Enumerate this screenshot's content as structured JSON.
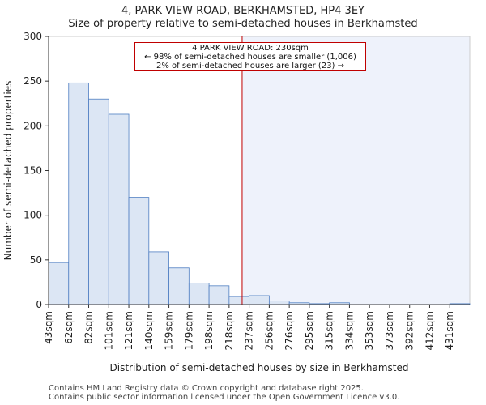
{
  "chart_data": {
    "type": "bar",
    "title": "4, PARK VIEW ROAD, BERKHAMSTED, HP4 3EY",
    "subtitle": "Size of property relative to semi-detached houses in Berkhamsted",
    "xlabel": "Distribution of semi-detached houses by size in Berkhamsted",
    "ylabel": "Number of semi-detached properties",
    "ylim": [
      0,
      300
    ],
    "yticks": [
      0,
      50,
      100,
      150,
      200,
      250,
      300
    ],
    "categories": [
      "43sqm",
      "62sqm",
      "82sqm",
      "101sqm",
      "121sqm",
      "140sqm",
      "159sqm",
      "179sqm",
      "198sqm",
      "218sqm",
      "237sqm",
      "256sqm",
      "276sqm",
      "295sqm",
      "315sqm",
      "334sqm",
      "353sqm",
      "373sqm",
      "392sqm",
      "412sqm",
      "431sqm"
    ],
    "values": [
      47,
      248,
      230,
      213,
      120,
      59,
      41,
      24,
      21,
      9,
      10,
      4,
      2,
      1,
      2,
      0,
      0,
      0,
      0,
      0,
      1
    ],
    "marker": {
      "value_sqm": 230,
      "bin_position": 9.65
    },
    "annotation": {
      "line1": "4 PARK VIEW ROAD: 230sqm",
      "line2": "← 98% of semi-detached houses are smaller (1,006)",
      "line3": "2% of semi-detached houses are larger (23) →"
    },
    "colors": {
      "bar_fill": "#dce6f4",
      "bar_stroke": "#4f7ec2",
      "marker": "#c00000",
      "highlight": "#eef2fb"
    }
  },
  "footer": {
    "line1": "Contains HM Land Registry data © Crown copyright and database right 2025.",
    "line2": "Contains public sector information licensed under the Open Government Licence v3.0."
  }
}
